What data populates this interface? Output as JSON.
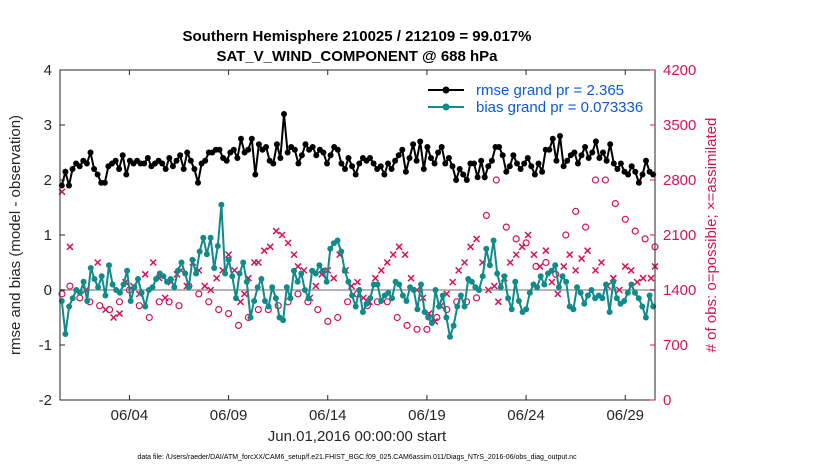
{
  "chart_data": {
    "type": "line",
    "title_line1": "Southern Hemisphere 210025 / 212109 = 99.017%",
    "title_line2": "SAT_V_WIND_COMPONENT @ 688 hPa",
    "xlabel": "Jun.01,2016 00:00:00 start",
    "ylabel_left": "rmse and bias (model - observation)",
    "ylabel_right": "# of obs: o=possible; ×=assimilated",
    "footnote": "data file: /Users/raeder/DAI/ATM_forcXX/CAM6_setup/f.e21.FHIST_BGC.f09_025.CAM6assim.011/Diags_NTrS_2016-06/obs_diag_output.nc",
    "xlim": [
      0,
      30
    ],
    "ylim_left": [
      -2,
      4
    ],
    "ylim_right": [
      0,
      4200
    ],
    "x_ticks": [
      3.5,
      8.5,
      13.5,
      18.5,
      23.5,
      28.5
    ],
    "x_tick_labels": [
      "06/04",
      "06/09",
      "06/14",
      "06/19",
      "06/24",
      "06/29"
    ],
    "y_left_ticks": [
      -2,
      -1,
      0,
      1,
      2,
      3,
      4
    ],
    "y_left_tick_labels": [
      "-2",
      "-1",
      "0",
      "1",
      "2",
      "3",
      "4"
    ],
    "y_right_ticks": [
      0,
      700,
      1400,
      2100,
      2800,
      3500,
      4200
    ],
    "y_right_tick_labels": [
      "0",
      "700",
      "1400",
      "2100",
      "2800",
      "3500",
      "4200"
    ],
    "colors": {
      "rmse": "#000000",
      "bias": "#108a8a",
      "obs": "#d4145a",
      "zero_line": "#b4b4b4",
      "legend_text": "#0a5ad8",
      "axis": "#262626"
    },
    "legend": [
      "rmse grand pr = 2.365",
      "bias grand pr = 0.073336"
    ],
    "series": [
      {
        "name": "rmse grand pr = 2.365",
        "values": [
          1.9,
          2.15,
          1.9,
          2.2,
          2.3,
          2.25,
          2.35,
          2.3,
          2.5,
          2.2,
          2.1,
          1.95,
          1.95,
          2.25,
          2.3,
          2.35,
          2.2,
          2.45,
          2.1,
          2.35,
          2.3,
          2.35,
          2.3,
          2.3,
          2.4,
          2.25,
          2.3,
          2.35,
          2.3,
          2.2,
          2.4,
          2.25,
          2.35,
          2.45,
          2.2,
          2.5,
          2.35,
          2.2,
          1.95,
          2.3,
          2.35,
          2.5,
          2.5,
          2.55,
          2.55,
          2.4,
          2.35,
          2.5,
          2.55,
          2.4,
          2.75,
          2.5,
          2.55,
          2.75,
          2.1,
          2.65,
          2.55,
          2.6,
          2.35,
          2.3,
          2.65,
          2.4,
          3.2,
          2.5,
          2.6,
          2.55,
          2.3,
          2.45,
          2.65,
          2.55,
          2.6,
          2.45,
          2.55,
          2.5,
          2.3,
          2.45,
          2.6,
          2.55,
          2.3,
          2.2,
          2.4,
          2.25,
          2.1,
          2.3,
          2.4,
          2.35,
          2.4,
          2.3,
          2.2,
          2.25,
          2.1,
          2.3,
          2.2,
          2.35,
          2.45,
          2.55,
          2.15,
          2.4,
          2.65,
          2.35,
          2.7,
          2.2,
          2.6,
          2.4,
          2.3,
          2.5,
          2.6,
          2.3,
          2.4,
          2.25,
          2.0,
          2.2,
          2.1,
          2.0,
          2.3,
          2.3,
          2.05,
          2.35,
          2.05,
          2.25,
          2.35,
          2.6,
          2.6,
          2.45,
          2.15,
          2.25,
          2.45,
          2.3,
          2.2,
          2.3,
          2.4,
          2.25,
          2.1,
          2.3,
          2.15,
          2.55,
          2.55,
          2.75,
          2.35,
          2.8,
          2.25,
          2.35,
          2.45,
          2.5,
          2.3,
          2.45,
          2.6,
          2.4,
          2.5,
          2.7,
          2.4,
          2.5,
          2.35,
          2.65,
          2.3,
          2.2,
          2.3,
          2.15,
          2.1,
          2.25,
          2.15,
          1.95,
          2.1,
          2.35,
          2.15,
          2.1
        ]
      },
      {
        "name": "bias grand pr = 0.073336",
        "values": [
          -0.2,
          -0.8,
          -0.3,
          -0.15,
          0.0,
          -0.05,
          0.15,
          -0.2,
          0.4,
          0.2,
          0.05,
          0.25,
          -0.1,
          0.45,
          0.1,
          0.0,
          -0.05,
          0.1,
          0.35,
          -0.2,
          0.05,
          0.2,
          -0.05,
          -0.3,
          0.0,
          0.05,
          0.2,
          0.3,
          0.25,
          0.15,
          0.2,
          0.05,
          0.35,
          0.5,
          0.3,
          0.05,
          0.55,
          0.3,
          0.7,
          0.95,
          0.65,
          0.95,
          0.4,
          0.8,
          1.55,
          0.3,
          0.55,
          0.25,
          -0.15,
          0.3,
          0.5,
          0.15,
          -0.5,
          -0.2,
          0.05,
          0.2,
          -0.2,
          -0.3,
          0.05,
          -0.15,
          -0.5,
          -0.55,
          0.05,
          -0.15,
          0.35,
          0.15,
          0.3,
          0.0,
          -0.15,
          0.35,
          0.3,
          0.45,
          0.35,
          0.15,
          0.75,
          0.85,
          0.9,
          0.7,
          0.35,
          0.15,
          -0.1,
          -0.3,
          0.0,
          -0.4,
          -0.25,
          -0.15,
          0.1,
          0.1,
          -0.2,
          -0.1,
          -0.05,
          -0.15,
          0.15,
          0.1,
          -0.1,
          -0.2,
          0.05,
          0.0,
          -0.35,
          0.1,
          -0.4,
          -0.5,
          -0.6,
          0.0,
          -0.3,
          -0.1,
          -0.5,
          -0.85,
          -0.65,
          -0.3,
          -0.1,
          -0.3,
          0.2,
          0.15,
          0.05,
          0.0,
          0.25,
          0.75,
          0.45,
          0.9,
          0.3,
          0.05,
          0.25,
          -0.15,
          -0.35,
          0.15,
          -0.2,
          -0.4,
          -0.35,
          -0.05,
          0.1,
          0.05,
          0.25,
          0.1,
          0.3,
          0.35,
          0.45,
          0.05,
          0.25,
          0.15,
          -0.3,
          -0.35,
          0.05,
          -0.05,
          -0.25,
          -0.1,
          0.0,
          -0.15,
          -0.1,
          -0.15,
          0.1,
          -0.4,
          0.15,
          -0.15,
          -0.25,
          -0.2,
          -0.05,
          0.1,
          -0.05,
          -0.15,
          -0.3,
          -0.5,
          -0.1,
          -0.3
        ]
      },
      {
        "name": "# of obs assimilated",
        "axis": "right",
        "points": [
          [
            0.1,
            2650
          ],
          [
            0.5,
            1950
          ],
          [
            1.3,
            1400
          ],
          [
            1.9,
            1750
          ],
          [
            2.3,
            1150
          ],
          [
            2.7,
            1050
          ],
          [
            3.0,
            1100
          ],
          [
            3.3,
            1500
          ],
          [
            3.7,
            1450
          ],
          [
            4.0,
            1350
          ],
          [
            4.3,
            1600
          ],
          [
            4.7,
            1750
          ],
          [
            5.0,
            1550
          ],
          [
            5.3,
            1300
          ],
          [
            5.6,
            1500
          ],
          [
            5.9,
            1600
          ],
          [
            6.1,
            1650
          ],
          [
            6.4,
            1450
          ],
          [
            6.7,
            1750
          ],
          [
            7.0,
            1650
          ],
          [
            7.3,
            1450
          ],
          [
            7.6,
            1400
          ],
          [
            7.9,
            1550
          ],
          [
            8.2,
            1650
          ],
          [
            8.5,
            1850
          ],
          [
            8.8,
            1650
          ],
          [
            9.1,
            1250
          ],
          [
            9.3,
            1350
          ],
          [
            9.5,
            1550
          ],
          [
            9.8,
            1750
          ],
          [
            10.0,
            1750
          ],
          [
            10.3,
            1900
          ],
          [
            10.6,
            1950
          ],
          [
            10.9,
            2150
          ],
          [
            11.2,
            2100
          ],
          [
            11.5,
            2000
          ],
          [
            11.8,
            1850
          ],
          [
            12.0,
            1700
          ],
          [
            12.3,
            1650
          ],
          [
            12.6,
            1300
          ],
          [
            12.9,
            1450
          ],
          [
            13.2,
            1600
          ],
          [
            13.5,
            1650
          ],
          [
            13.8,
            1550
          ],
          [
            14.1,
            1850
          ],
          [
            14.4,
            1650
          ],
          [
            14.7,
            1450
          ],
          [
            15.0,
            1500
          ],
          [
            15.3,
            1300
          ],
          [
            15.6,
            1250
          ],
          [
            15.9,
            1550
          ],
          [
            16.2,
            1650
          ],
          [
            16.5,
            1750
          ],
          [
            16.8,
            1850
          ],
          [
            17.1,
            1950
          ],
          [
            17.4,
            1850
          ],
          [
            17.7,
            1550
          ],
          [
            18.0,
            1400
          ],
          [
            18.3,
            1300
          ],
          [
            18.6,
            1100
          ],
          [
            18.9,
            1000
          ],
          [
            19.2,
            1200
          ],
          [
            19.5,
            1350
          ],
          [
            19.8,
            1500
          ],
          [
            20.1,
            1650
          ],
          [
            20.4,
            1750
          ],
          [
            20.7,
            1950
          ],
          [
            21.0,
            2050
          ],
          [
            21.3,
            1750
          ],
          [
            21.6,
            1400
          ],
          [
            21.9,
            1450
          ],
          [
            22.1,
            1250
          ],
          [
            22.4,
            1550
          ],
          [
            22.7,
            1750
          ],
          [
            23.0,
            1850
          ],
          [
            23.3,
            1950
          ],
          [
            23.6,
            2100
          ],
          [
            23.9,
            1850
          ],
          [
            24.2,
            1700
          ],
          [
            24.5,
            1900
          ],
          [
            24.8,
            1500
          ],
          [
            25.1,
            1350
          ],
          [
            25.4,
            1700
          ],
          [
            25.7,
            1850
          ],
          [
            26.0,
            1650
          ],
          [
            26.3,
            1800
          ],
          [
            26.6,
            1900
          ],
          [
            27.0,
            1650
          ],
          [
            27.3,
            1750
          ],
          [
            27.6,
            1450
          ],
          [
            27.9,
            1550
          ],
          [
            28.2,
            1400
          ],
          [
            28.5,
            1700
          ],
          [
            28.8,
            1650
          ],
          [
            29.1,
            1500
          ],
          [
            29.4,
            1550
          ],
          [
            29.8,
            1550
          ],
          [
            30.0,
            1700
          ]
        ]
      },
      {
        "name": "# of obs possible",
        "axis": "right",
        "points": [
          [
            0.1,
            1350
          ],
          [
            0.5,
            1450
          ],
          [
            1.0,
            1300
          ],
          [
            1.5,
            1250
          ],
          [
            2.0,
            1200
          ],
          [
            2.5,
            1150
          ],
          [
            3.0,
            1250
          ],
          [
            3.5,
            1400
          ],
          [
            4.0,
            1200
          ],
          [
            4.5,
            1050
          ],
          [
            5.0,
            1250
          ],
          [
            5.5,
            1250
          ],
          [
            6.0,
            1200
          ],
          [
            6.5,
            1450
          ],
          [
            7.0,
            1350
          ],
          [
            7.5,
            1250
          ],
          [
            8.0,
            1150
          ],
          [
            8.5,
            1100
          ],
          [
            9.0,
            950
          ],
          [
            9.5,
            1050
          ],
          [
            10.0,
            1150
          ],
          [
            10.5,
            1150
          ],
          [
            11.0,
            1200
          ],
          [
            11.5,
            1250
          ],
          [
            12.0,
            1350
          ],
          [
            12.5,
            1250
          ],
          [
            13.0,
            1150
          ],
          [
            13.5,
            1000
          ],
          [
            14.0,
            1050
          ],
          [
            14.5,
            1250
          ],
          [
            15.0,
            1350
          ],
          [
            15.5,
            1200
          ],
          [
            16.0,
            1250
          ],
          [
            16.5,
            1250
          ],
          [
            17.0,
            1050
          ],
          [
            17.5,
            950
          ],
          [
            18.0,
            900
          ],
          [
            18.5,
            900
          ],
          [
            19.0,
            1050
          ],
          [
            19.5,
            1150
          ],
          [
            20.0,
            1250
          ],
          [
            20.5,
            1250
          ],
          [
            21.0,
            1300
          ],
          [
            21.5,
            2350
          ],
          [
            22.0,
            2800
          ],
          [
            22.5,
            2200
          ],
          [
            23.0,
            2050
          ],
          [
            23.5,
            2000
          ],
          [
            24.0,
            1700
          ],
          [
            24.5,
            1750
          ],
          [
            25.0,
            1600
          ],
          [
            25.5,
            2100
          ],
          [
            26.0,
            2400
          ],
          [
            26.5,
            2200
          ],
          [
            27.0,
            2800
          ],
          [
            27.5,
            2800
          ],
          [
            28.0,
            2500
          ],
          [
            28.5,
            2300
          ],
          [
            29.0,
            2150
          ],
          [
            29.5,
            2050
          ],
          [
            30.0,
            1950
          ]
        ]
      }
    ]
  }
}
